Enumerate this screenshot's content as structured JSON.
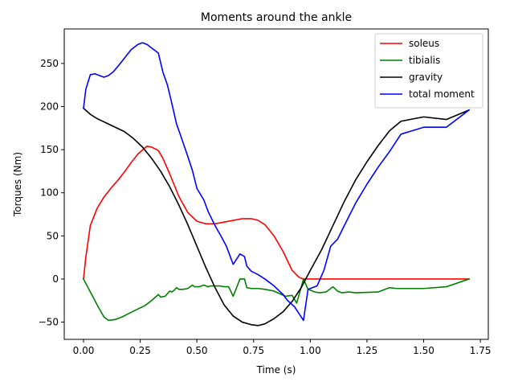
{
  "chart_data": {
    "type": "line",
    "title": "Moments around the ankle",
    "xlabel": "Time (s)",
    "ylabel": "Torques (Nm)",
    "xlim": [
      -0.085,
      1.785
    ],
    "ylim": [
      -70,
      290
    ],
    "xticks": [
      0.0,
      0.25,
      0.5,
      0.75,
      1.0,
      1.25,
      1.5,
      1.75
    ],
    "xtick_labels": [
      "0.00",
      "0.25",
      "0.50",
      "0.75",
      "1.00",
      "1.25",
      "1.50",
      "1.75"
    ],
    "yticks": [
      -50,
      0,
      50,
      100,
      150,
      200,
      250
    ],
    "ytick_labels": [
      "−50",
      "0",
      "50",
      "100",
      "150",
      "200",
      "250"
    ],
    "grid": false,
    "legend_position": "top-right",
    "series": [
      {
        "name": "soleus",
        "color": "#ff0000",
        "x": [
          0.0,
          0.01,
          0.03,
          0.06,
          0.09,
          0.12,
          0.15,
          0.18,
          0.21,
          0.24,
          0.27,
          0.28,
          0.3,
          0.33,
          0.35,
          0.38,
          0.42,
          0.46,
          0.5,
          0.54,
          0.58,
          0.62,
          0.66,
          0.7,
          0.74,
          0.77,
          0.8,
          0.84,
          0.88,
          0.92,
          0.95,
          0.97,
          1.0,
          1.7
        ],
        "y": [
          0,
          25,
          62,
          82,
          95,
          105,
          114,
          124,
          135,
          145,
          152,
          154,
          153,
          149,
          140,
          122,
          96,
          77,
          67,
          64,
          64,
          66,
          68,
          70,
          70,
          68,
          63,
          50,
          32,
          10,
          2,
          0,
          0,
          0
        ]
      },
      {
        "name": "tibialis",
        "color": "#008000",
        "x": [
          0.0,
          0.03,
          0.06,
          0.09,
          0.11,
          0.14,
          0.17,
          0.2,
          0.23,
          0.27,
          0.3,
          0.33,
          0.34,
          0.36,
          0.38,
          0.39,
          0.4,
          0.41,
          0.42,
          0.44,
          0.46,
          0.48,
          0.49,
          0.51,
          0.53,
          0.55,
          0.56,
          0.58,
          0.6,
          0.62,
          0.64,
          0.66,
          0.69,
          0.71,
          0.72,
          0.74,
          0.77,
          0.8,
          0.84,
          0.89,
          0.92,
          0.94,
          0.97,
          0.99,
          1.02,
          1.04,
          1.07,
          1.1,
          1.12,
          1.14,
          1.17,
          1.2,
          1.3,
          1.35,
          1.38,
          1.5,
          1.6,
          1.7
        ],
        "y": [
          0,
          -15,
          -30,
          -44,
          -48,
          -47,
          -44,
          -40,
          -36,
          -31,
          -25,
          -18,
          -21,
          -20,
          -14,
          -15,
          -13,
          -10,
          -12,
          -12,
          -11,
          -7,
          -9,
          -9,
          -7,
          -9,
          -8,
          -8,
          -8,
          -9,
          -9,
          -20,
          0,
          0,
          -10,
          -11,
          -11,
          -12,
          -14,
          -20,
          -19,
          -28,
          0,
          -12,
          -15,
          -16,
          -15,
          -9,
          -14,
          -16,
          -15,
          -16,
          -15,
          -10,
          -11,
          -11,
          -9,
          0
        ]
      },
      {
        "name": "gravity",
        "color": "#000000",
        "x": [
          0.0,
          0.03,
          0.06,
          0.1,
          0.14,
          0.18,
          0.22,
          0.26,
          0.3,
          0.34,
          0.38,
          0.42,
          0.46,
          0.5,
          0.54,
          0.58,
          0.62,
          0.66,
          0.7,
          0.74,
          0.77,
          0.8,
          0.84,
          0.88,
          0.92,
          0.96,
          1.0,
          1.05,
          1.1,
          1.15,
          1.2,
          1.25,
          1.3,
          1.35,
          1.4,
          1.5,
          1.6,
          1.7
        ],
        "y": [
          198,
          191,
          186,
          181,
          176,
          171,
          163,
          153,
          140,
          125,
          107,
          86,
          63,
          38,
          13,
          -10,
          -30,
          -43,
          -50,
          -53,
          -54,
          -52,
          -46,
          -38,
          -26,
          -10,
          10,
          34,
          62,
          90,
          115,
          136,
          155,
          172,
          183,
          188,
          185,
          196
        ]
      },
      {
        "name": "total moment",
        "color": "#0000ff",
        "x": [
          0.0,
          0.01,
          0.03,
          0.05,
          0.07,
          0.09,
          0.11,
          0.13,
          0.15,
          0.18,
          0.21,
          0.24,
          0.26,
          0.28,
          0.3,
          0.33,
          0.35,
          0.37,
          0.39,
          0.41,
          0.43,
          0.46,
          0.48,
          0.5,
          0.53,
          0.55,
          0.58,
          0.61,
          0.63,
          0.66,
          0.69,
          0.71,
          0.72,
          0.74,
          0.77,
          0.8,
          0.84,
          0.88,
          0.9,
          0.93,
          0.95,
          0.97,
          0.99,
          1.01,
          1.03,
          1.06,
          1.09,
          1.12,
          1.15,
          1.2,
          1.25,
          1.3,
          1.35,
          1.4,
          1.5,
          1.6,
          1.7
        ],
        "y": [
          198,
          220,
          237,
          238,
          236,
          234,
          236,
          240,
          246,
          256,
          266,
          272,
          274,
          272,
          268,
          262,
          240,
          225,
          203,
          180,
          165,
          142,
          126,
          105,
          92,
          78,
          62,
          48,
          38,
          17,
          29,
          26,
          15,
          9,
          5,
          0,
          -8,
          -18,
          -25,
          -32,
          -40,
          -48,
          -12,
          -10,
          -8,
          10,
          38,
          46,
          62,
          88,
          110,
          130,
          148,
          168,
          176,
          176,
          196
        ]
      }
    ]
  }
}
